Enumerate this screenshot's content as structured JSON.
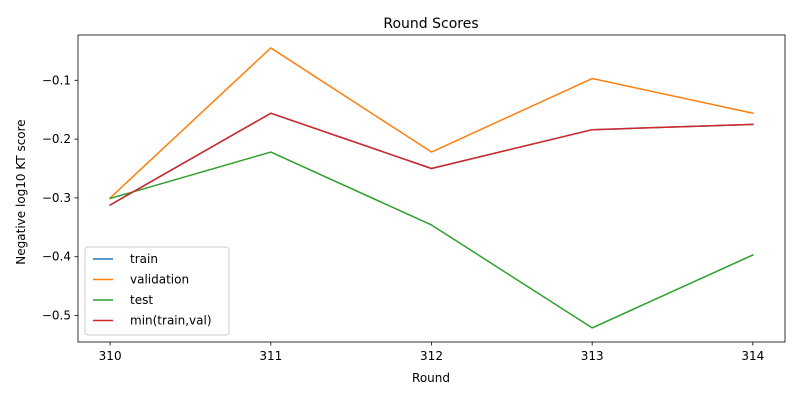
{
  "chart_data": {
    "type": "line",
    "title": "Round Scores",
    "xlabel": "Round",
    "ylabel": "Negative log10 KT score",
    "x": [
      310,
      311,
      312,
      313,
      314
    ],
    "xticks": [
      "310",
      "311",
      "312",
      "313",
      "314"
    ],
    "yticks": [
      -0.5,
      -0.4,
      -0.3,
      -0.2,
      -0.1
    ],
    "ytick_labels": [
      "−0.5",
      "−0.4",
      "−0.3",
      "−0.2",
      "−0.1"
    ],
    "xlim": [
      309.8,
      314.2
    ],
    "ylim": [
      -0.545,
      -0.023
    ],
    "grid": false,
    "legend_position": "lower-left",
    "series": [
      {
        "name": "train",
        "color": "#1f77b4",
        "values": [
          -0.312,
          -0.156,
          -0.25,
          -0.184,
          -0.175
        ]
      },
      {
        "name": "validation",
        "color": "#ff7f0e",
        "values": [
          -0.3,
          -0.045,
          -0.222,
          -0.097,
          -0.156
        ]
      },
      {
        "name": "test",
        "color": "#2ca02c",
        "values": [
          -0.301,
          -0.222,
          -0.346,
          -0.521,
          -0.397
        ]
      },
      {
        "name": "min(train,val)",
        "color": "#d62728",
        "values": [
          -0.312,
          -0.156,
          -0.25,
          -0.184,
          -0.175
        ]
      }
    ]
  }
}
